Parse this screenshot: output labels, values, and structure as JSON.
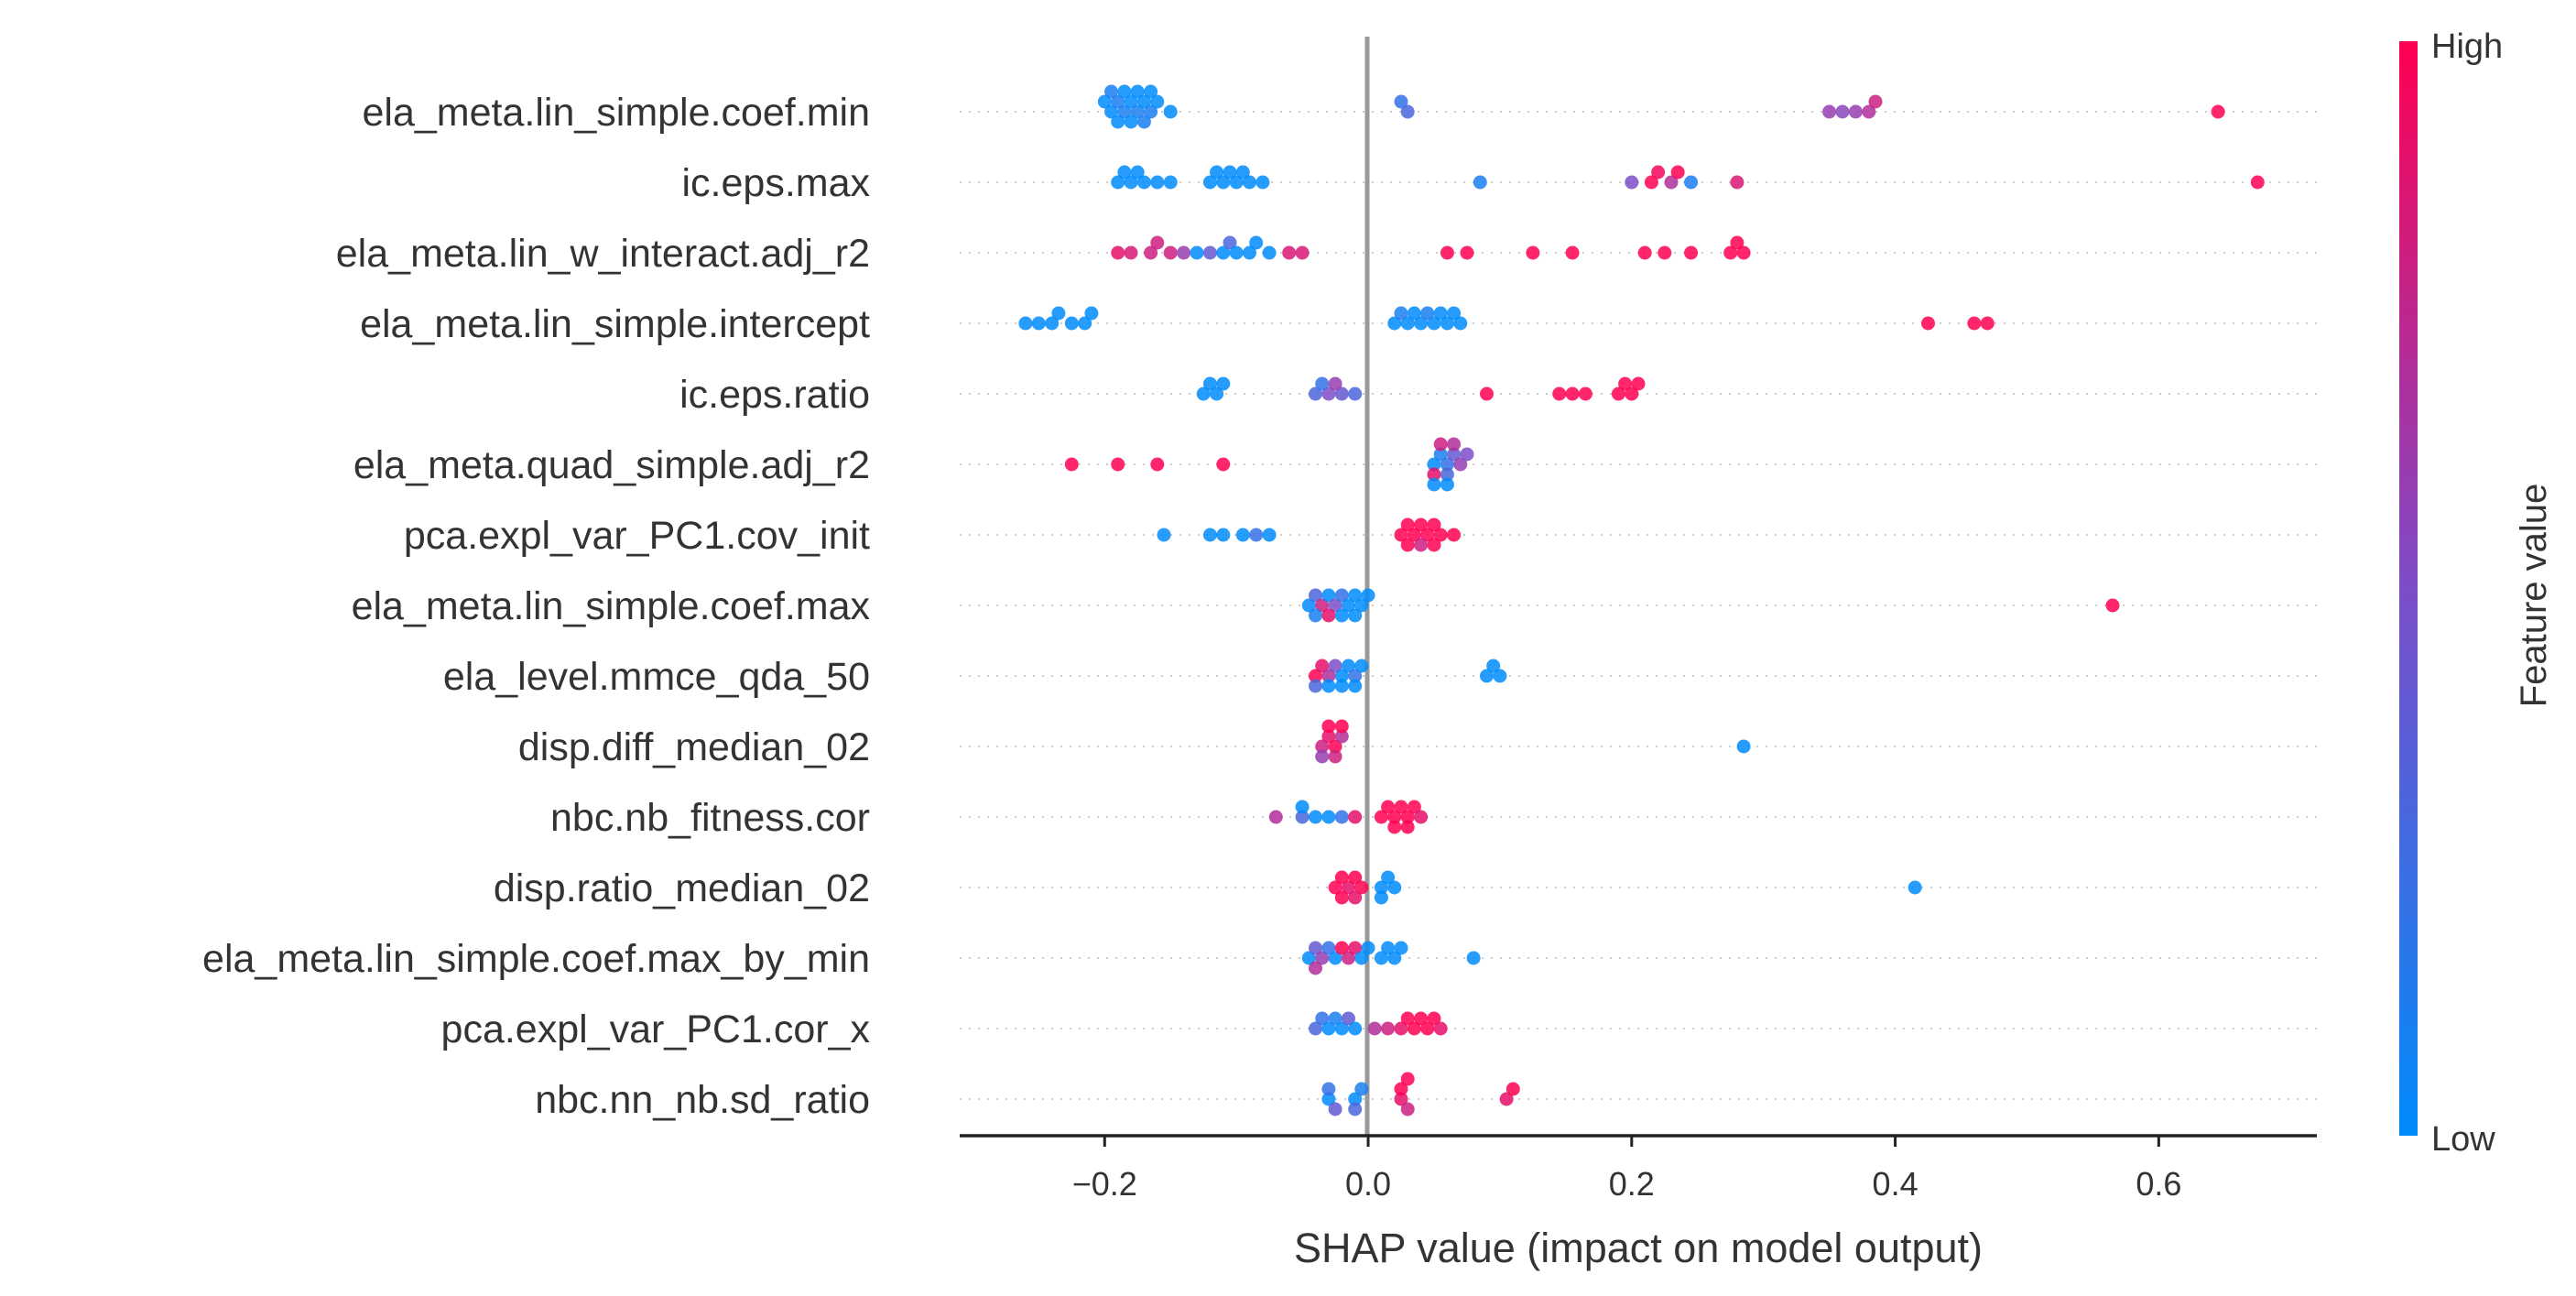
{
  "chart_data": {
    "type": "scatter",
    "title": "",
    "xlabel": "SHAP value (impact on model output)",
    "ylabel": "",
    "xlim": [
      -0.31,
      0.72
    ],
    "xticks": [
      -0.2,
      0.0,
      0.2,
      0.4,
      0.6
    ],
    "xtick_labels": [
      "−0.2",
      "0.0",
      "0.2",
      "0.4",
      "0.6"
    ],
    "grid": "dotted horizontal row guides",
    "colorbar": {
      "title": "Feature value",
      "high_label": "High",
      "low_label": "Low",
      "low_color": "#008bfb",
      "high_color": "#ff0052"
    },
    "zero_line_color": "#999999",
    "features": [
      {
        "name": "ela_meta.lin_simple.coef.min",
        "points": [
          [
            -0.195,
            0.0
          ],
          [
            -0.19,
            0.1
          ],
          [
            -0.185,
            0.1
          ],
          [
            -0.18,
            0.0
          ],
          [
            -0.175,
            0.1
          ],
          [
            -0.17,
            0.0
          ],
          [
            -0.165,
            0.1
          ],
          [
            -0.16,
            0.0
          ],
          [
            -0.2,
            0.0
          ],
          [
            -0.19,
            0.0
          ],
          [
            -0.18,
            0.0
          ],
          [
            -0.17,
            0.1
          ],
          [
            -0.15,
            0.0
          ],
          [
            -0.195,
            0.1
          ],
          [
            -0.185,
            0.0
          ],
          [
            -0.175,
            0.0
          ],
          [
            -0.165,
            0.0
          ],
          [
            0.03,
            0.3
          ],
          [
            0.025,
            0.2
          ],
          [
            0.35,
            0.6
          ],
          [
            0.36,
            0.55
          ],
          [
            0.37,
            0.6
          ],
          [
            0.38,
            0.7
          ],
          [
            0.385,
            0.8
          ],
          [
            0.645,
            1.0
          ]
        ]
      },
      {
        "name": "ic.eps.max",
        "points": [
          [
            -0.19,
            0.0
          ],
          [
            -0.18,
            0.0
          ],
          [
            -0.17,
            0.0
          ],
          [
            -0.16,
            0.0
          ],
          [
            -0.15,
            0.0
          ],
          [
            -0.185,
            0.0
          ],
          [
            -0.175,
            0.0
          ],
          [
            -0.12,
            0.0
          ],
          [
            -0.11,
            0.0
          ],
          [
            -0.1,
            0.0
          ],
          [
            -0.09,
            0.0
          ],
          [
            -0.08,
            0.0
          ],
          [
            -0.115,
            0.0
          ],
          [
            -0.105,
            0.0
          ],
          [
            -0.095,
            0.0
          ],
          [
            0.085,
            0.1
          ],
          [
            0.2,
            0.5
          ],
          [
            0.215,
            1.0
          ],
          [
            0.22,
            0.95
          ],
          [
            0.23,
            0.7
          ],
          [
            0.235,
            1.0
          ],
          [
            0.245,
            0.1
          ],
          [
            0.28,
            0.85
          ],
          [
            0.675,
            1.0
          ]
        ]
      },
      {
        "name": "ela_meta.lin_w_interact.adj_r2",
        "points": [
          [
            -0.19,
            0.9
          ],
          [
            -0.18,
            0.85
          ],
          [
            -0.165,
            0.8
          ],
          [
            -0.16,
            0.8
          ],
          [
            -0.15,
            0.8
          ],
          [
            -0.14,
            0.6
          ],
          [
            -0.13,
            0.0
          ],
          [
            -0.12,
            0.4
          ],
          [
            -0.11,
            0.0
          ],
          [
            -0.105,
            0.3
          ],
          [
            -0.1,
            0.0
          ],
          [
            -0.09,
            0.0
          ],
          [
            -0.085,
            0.0
          ],
          [
            -0.075,
            0.0
          ],
          [
            -0.06,
            0.85
          ],
          [
            -0.05,
            0.85
          ],
          [
            0.06,
            1.0
          ],
          [
            0.075,
            1.0
          ],
          [
            0.125,
            1.0
          ],
          [
            0.155,
            1.0
          ],
          [
            0.21,
            1.0
          ],
          [
            0.225,
            1.0
          ],
          [
            0.245,
            1.0
          ],
          [
            0.275,
            1.0
          ],
          [
            0.28,
            1.0
          ],
          [
            0.285,
            1.0
          ]
        ]
      },
      {
        "name": "ela_meta.lin_simple.intercept",
        "points": [
          [
            -0.26,
            0.0
          ],
          [
            -0.25,
            0.0
          ],
          [
            -0.24,
            0.0
          ],
          [
            -0.235,
            0.0
          ],
          [
            -0.225,
            0.0
          ],
          [
            -0.215,
            0.0
          ],
          [
            -0.21,
            0.0
          ],
          [
            0.02,
            0.0
          ],
          [
            0.03,
            0.0
          ],
          [
            0.04,
            0.0
          ],
          [
            0.05,
            0.0
          ],
          [
            0.06,
            0.0
          ],
          [
            0.07,
            0.0
          ],
          [
            0.025,
            0.1
          ],
          [
            0.035,
            0.0
          ],
          [
            0.045,
            0.1
          ],
          [
            0.055,
            0.0
          ],
          [
            0.065,
            0.0
          ],
          [
            0.425,
            1.0
          ],
          [
            0.46,
            1.0
          ],
          [
            0.47,
            1.0
          ]
        ]
      },
      {
        "name": "ic.eps.ratio",
        "points": [
          [
            -0.125,
            0.0
          ],
          [
            -0.12,
            0.0
          ],
          [
            -0.115,
            0.0
          ],
          [
            -0.11,
            0.0
          ],
          [
            -0.04,
            0.3
          ],
          [
            -0.03,
            0.5
          ],
          [
            -0.02,
            0.4
          ],
          [
            -0.01,
            0.3
          ],
          [
            -0.035,
            0.2
          ],
          [
            -0.025,
            0.6
          ],
          [
            0.09,
            1.0
          ],
          [
            0.145,
            1.0
          ],
          [
            0.155,
            1.0
          ],
          [
            0.165,
            1.0
          ],
          [
            0.19,
            1.0
          ],
          [
            0.2,
            1.0
          ],
          [
            0.205,
            1.0
          ],
          [
            0.195,
            1.0
          ]
        ]
      },
      {
        "name": "ela_meta.quad_simple.adj_r2",
        "points": [
          [
            -0.225,
            1.0
          ],
          [
            -0.19,
            1.0
          ],
          [
            -0.16,
            1.0
          ],
          [
            -0.11,
            1.0
          ],
          [
            0.05,
            0.0
          ],
          [
            0.055,
            0.1
          ],
          [
            0.06,
            0.2
          ],
          [
            0.065,
            0.4
          ],
          [
            0.07,
            0.6
          ],
          [
            0.075,
            0.5
          ],
          [
            0.05,
            0.9
          ],
          [
            0.055,
            0.8
          ],
          [
            0.06,
            0.3
          ],
          [
            0.065,
            0.7
          ],
          [
            0.05,
            0.0
          ],
          [
            0.06,
            0.0
          ]
        ]
      },
      {
        "name": "pca.expl_var_PC1.cov_init",
        "points": [
          [
            -0.155,
            0.0
          ],
          [
            -0.12,
            0.0
          ],
          [
            -0.11,
            0.0
          ],
          [
            -0.095,
            0.0
          ],
          [
            -0.085,
            0.2
          ],
          [
            -0.075,
            0.0
          ],
          [
            0.025,
            1.0
          ],
          [
            0.03,
            1.0
          ],
          [
            0.035,
            1.0
          ],
          [
            0.04,
            1.0
          ],
          [
            0.045,
            1.0
          ],
          [
            0.05,
            1.0
          ],
          [
            0.055,
            1.0
          ],
          [
            0.065,
            1.0
          ],
          [
            0.03,
            1.0
          ],
          [
            0.04,
            0.8
          ],
          [
            0.05,
            1.0
          ]
        ]
      },
      {
        "name": "ela_meta.lin_simple.coef.max",
        "points": [
          [
            -0.045,
            0.0
          ],
          [
            -0.04,
            0.3
          ],
          [
            -0.035,
            0.8
          ],
          [
            -0.03,
            0.0
          ],
          [
            -0.025,
            0.5
          ],
          [
            -0.02,
            0.2
          ],
          [
            -0.015,
            0.0
          ],
          [
            -0.01,
            0.0
          ],
          [
            -0.005,
            0.0
          ],
          [
            -0.04,
            0.1
          ],
          [
            -0.03,
            0.9
          ],
          [
            -0.02,
            0.0
          ],
          [
            -0.01,
            0.0
          ],
          [
            0.0,
            0.0
          ],
          [
            0.565,
            1.0
          ]
        ]
      },
      {
        "name": "ela_level.mmce_qda_50",
        "points": [
          [
            -0.04,
            1.0
          ],
          [
            -0.035,
            0.9
          ],
          [
            -0.03,
            0.7
          ],
          [
            -0.025,
            0.5
          ],
          [
            -0.02,
            0.0
          ],
          [
            -0.015,
            0.0
          ],
          [
            -0.01,
            0.2
          ],
          [
            -0.005,
            0.0
          ],
          [
            -0.04,
            0.3
          ],
          [
            -0.03,
            0.0
          ],
          [
            -0.02,
            0.0
          ],
          [
            -0.01,
            0.0
          ],
          [
            0.09,
            0.0
          ],
          [
            0.095,
            0.0
          ],
          [
            0.1,
            0.0
          ]
        ]
      },
      {
        "name": "disp.diff_median_02",
        "points": [
          [
            -0.035,
            0.8
          ],
          [
            -0.03,
            0.9
          ],
          [
            -0.025,
            1.0
          ],
          [
            -0.02,
            0.7
          ],
          [
            -0.035,
            0.6
          ],
          [
            -0.03,
            1.0
          ],
          [
            -0.025,
            0.8
          ],
          [
            -0.02,
            1.0
          ],
          [
            0.285,
            0.0
          ]
        ]
      },
      {
        "name": "nbc.nb_fitness.cor",
        "points": [
          [
            -0.07,
            0.7
          ],
          [
            -0.05,
            0.3
          ],
          [
            -0.04,
            0.0
          ],
          [
            -0.03,
            0.0
          ],
          [
            -0.02,
            0.2
          ],
          [
            -0.01,
            0.9
          ],
          [
            0.01,
            1.0
          ],
          [
            0.015,
            1.0
          ],
          [
            0.02,
            1.0
          ],
          [
            0.025,
            1.0
          ],
          [
            0.03,
            1.0
          ],
          [
            0.035,
            1.0
          ],
          [
            0.04,
            0.9
          ],
          [
            0.02,
            1.0
          ],
          [
            0.03,
            1.0
          ],
          [
            -0.05,
            0.0
          ]
        ]
      },
      {
        "name": "disp.ratio_median_02",
        "points": [
          [
            -0.025,
            1.0
          ],
          [
            -0.02,
            1.0
          ],
          [
            -0.015,
            0.9
          ],
          [
            -0.01,
            1.0
          ],
          [
            -0.005,
            1.0
          ],
          [
            -0.02,
            1.0
          ],
          [
            -0.01,
            0.9
          ],
          [
            0.01,
            0.0
          ],
          [
            0.015,
            0.0
          ],
          [
            0.02,
            0.0
          ],
          [
            0.01,
            0.0
          ],
          [
            0.415,
            0.0
          ]
        ]
      },
      {
        "name": "ela_meta.lin_simple.coef.max_by_min",
        "points": [
          [
            -0.045,
            0.0
          ],
          [
            -0.04,
            0.4
          ],
          [
            -0.035,
            0.6
          ],
          [
            -0.03,
            0.2
          ],
          [
            -0.025,
            0.0
          ],
          [
            -0.02,
            1.0
          ],
          [
            -0.015,
            0.8
          ],
          [
            -0.01,
            0.9
          ],
          [
            -0.005,
            0.0
          ],
          [
            0.0,
            0.0
          ],
          [
            0.01,
            0.0
          ],
          [
            0.015,
            0.0
          ],
          [
            0.02,
            0.0
          ],
          [
            0.025,
            0.0
          ],
          [
            0.08,
            0.0
          ],
          [
            -0.04,
            0.7
          ]
        ]
      },
      {
        "name": "pca.expl_var_PC1.cor_x",
        "points": [
          [
            -0.04,
            0.3
          ],
          [
            -0.035,
            0.2
          ],
          [
            -0.03,
            0.0
          ],
          [
            -0.025,
            0.1
          ],
          [
            -0.02,
            0.0
          ],
          [
            -0.015,
            0.4
          ],
          [
            -0.01,
            0.0
          ],
          [
            0.005,
            0.7
          ],
          [
            0.015,
            0.8
          ],
          [
            0.025,
            0.9
          ],
          [
            0.035,
            1.0
          ],
          [
            0.04,
            1.0
          ],
          [
            0.045,
            1.0
          ],
          [
            0.05,
            1.0
          ],
          [
            0.055,
            0.9
          ],
          [
            0.03,
            1.0
          ]
        ]
      },
      {
        "name": "nbc.nn_nb.sd_ratio",
        "points": [
          [
            -0.03,
            0.0
          ],
          [
            -0.03,
            0.2
          ],
          [
            -0.025,
            0.4
          ],
          [
            -0.01,
            0.0
          ],
          [
            -0.005,
            0.1
          ],
          [
            -0.01,
            0.3
          ],
          [
            0.025,
            0.9
          ],
          [
            0.025,
            1.0
          ],
          [
            0.03,
            0.8
          ],
          [
            0.03,
            1.0
          ],
          [
            0.105,
            0.9
          ],
          [
            0.11,
            1.0
          ]
        ]
      }
    ]
  }
}
